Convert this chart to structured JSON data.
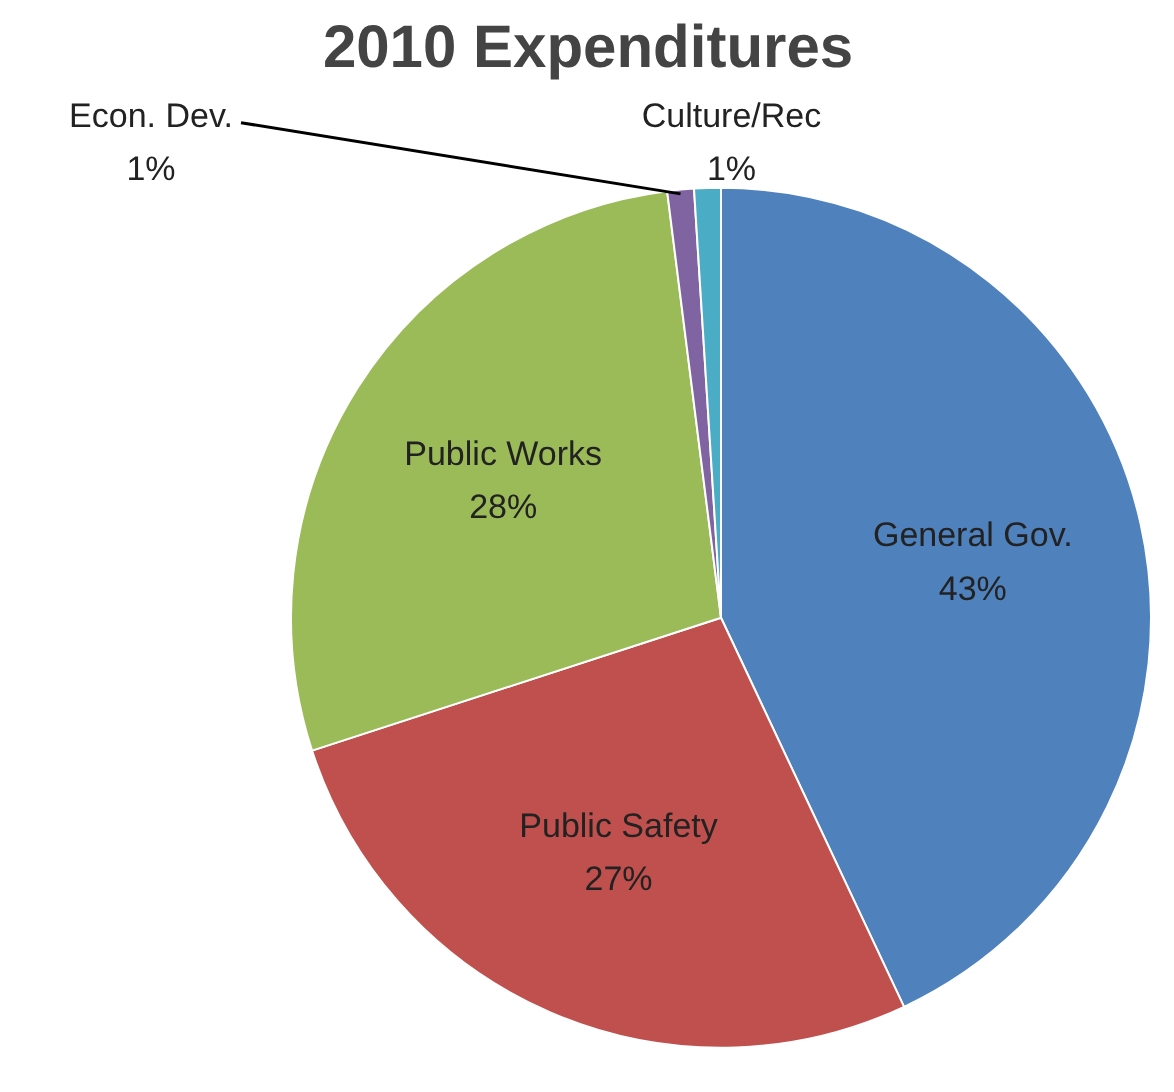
{
  "chart_data": {
    "type": "pie",
    "title": "2010 Expenditures",
    "categories": [
      "General Gov.",
      "Public Safety",
      "Public Works",
      "Econ. Dev.",
      "Culture/Rec"
    ],
    "values": [
      43,
      27,
      28,
      1,
      1
    ],
    "value_labels": [
      "43%",
      "27%",
      "28%",
      "1%",
      "1%"
    ],
    "colors": [
      "#4f81bd",
      "#c0504d",
      "#9bbb59",
      "#8064a2",
      "#4bacc6"
    ]
  }
}
